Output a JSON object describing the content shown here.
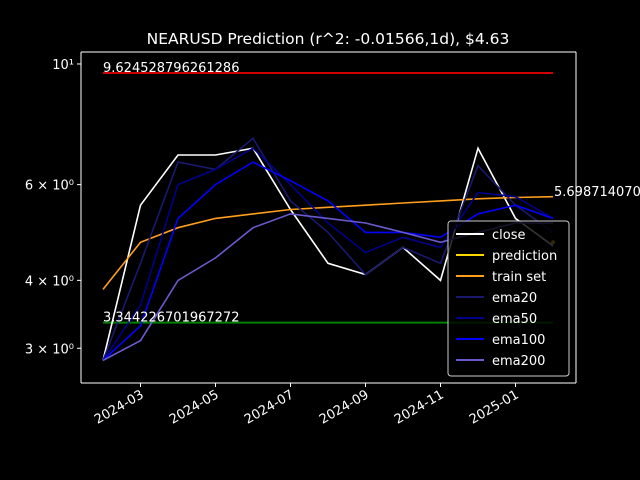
{
  "chart_data": {
    "type": "line",
    "title": "NEARUSD Prediction (r^2: -0.01566,1d), $4.63",
    "log_y": true,
    "x": [
      "2024-02",
      "2024-03",
      "2024-04",
      "2024-05",
      "2024-06",
      "2024-07",
      "2024-08",
      "2024-09",
      "2024-10",
      "2024-11",
      "2024-12",
      "2025-01",
      "2025-02"
    ],
    "xticks": [
      "2024-03",
      "2024-05",
      "2024-07",
      "2024-09",
      "2024-11",
      "2025-01"
    ],
    "ylim": [
      2.59,
      10.52
    ],
    "yticks": [
      {
        "value": 3,
        "label": "3 × 10⁰"
      },
      {
        "value": 4,
        "label": "4 × 10⁰"
      },
      {
        "value": 6,
        "label": "6 × 10⁰"
      },
      {
        "value": 10,
        "label": "10¹"
      }
    ],
    "series": [
      {
        "name": "close",
        "color": "#ffffff",
        "values": [
          2.85,
          5.5,
          6.8,
          6.8,
          7.0,
          5.4,
          4.3,
          4.1,
          4.6,
          4.0,
          7.0,
          5.2,
          4.63
        ]
      },
      {
        "name": "prediction",
        "color": "#ffd700",
        "values": [
          null,
          null,
          null,
          null,
          null,
          null,
          null,
          null,
          null,
          null,
          null,
          null,
          4.7
        ]
      },
      {
        "name": "train set",
        "color": "#ff9f1c",
        "values": [
          3.85,
          4.7,
          5.0,
          5.2,
          5.3,
          5.4,
          5.45,
          5.5,
          5.55,
          5.6,
          5.65,
          5.68,
          5.7
        ]
      },
      {
        "name": "ema20",
        "color": "#191970",
        "values": [
          2.85,
          4.3,
          6.6,
          6.4,
          7.3,
          5.6,
          4.9,
          4.1,
          4.6,
          4.3,
          6.5,
          5.5,
          4.9
        ]
      },
      {
        "name": "ema50",
        "color": "#00008b",
        "values": [
          2.85,
          3.6,
          6.0,
          6.4,
          7.0,
          6.0,
          5.1,
          4.5,
          4.8,
          4.6,
          5.8,
          5.7,
          5.2
        ]
      },
      {
        "name": "ema100",
        "color": "#0000ff",
        "values": [
          2.85,
          3.3,
          5.2,
          6.0,
          6.6,
          6.1,
          5.6,
          4.9,
          4.9,
          4.8,
          5.3,
          5.5,
          5.2
        ]
      },
      {
        "name": "ema200",
        "color": "#6a5acd",
        "values": [
          2.85,
          3.1,
          4.0,
          4.4,
          5.0,
          5.3,
          5.2,
          5.1,
          4.9,
          4.7,
          4.9,
          5.1,
          5.1
        ]
      }
    ],
    "hlines": [
      {
        "value": 9.624528796261286,
        "label": "9.624528796261286",
        "color": "#d00000"
      },
      {
        "value": 3.344226701967272,
        "label": "3.344226701967272",
        "color": "#008000"
      }
    ],
    "end_annotation": {
      "value": 5.69871407,
      "label": "5.698714070"
    },
    "legend": "lower right"
  }
}
